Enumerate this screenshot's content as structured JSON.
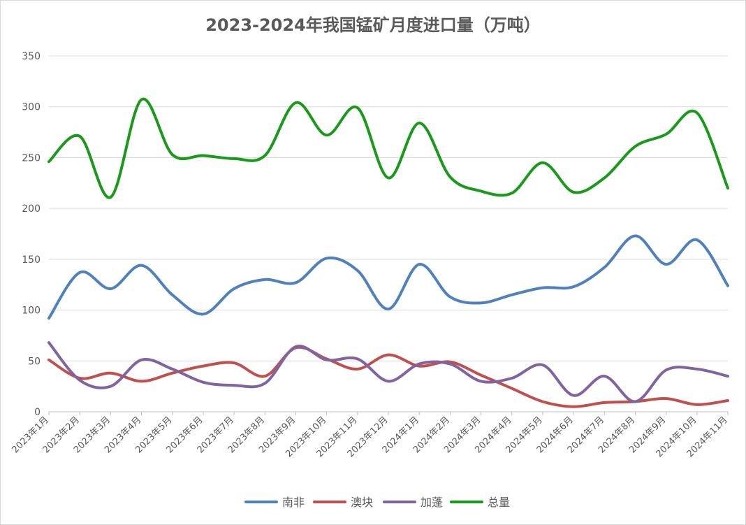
{
  "chart_data": {
    "type": "line",
    "title": "2023-2024年我国锰矿月度进口量（万吨）",
    "xlabel": "",
    "ylabel": "",
    "ylim": [
      0,
      350
    ],
    "yticks": [
      0,
      50,
      100,
      150,
      200,
      250,
      300,
      350
    ],
    "grid": true,
    "legend_position": "bottom",
    "categories": [
      "2023年1月",
      "2023年2月",
      "2023年3月",
      "2023年4月",
      "2023年5月",
      "2023年6月",
      "2023年7月",
      "2023年8月",
      "2023年9月",
      "2023年10月",
      "2023年11月",
      "2023年12月",
      "2024年1月",
      "2024年2月",
      "2024年3月",
      "2024年4月",
      "2024年5月",
      "2024年6月",
      "2024年7月",
      "2024年8月",
      "2024年9月",
      "2024年10月",
      "2024年11月"
    ],
    "series": [
      {
        "name": "南非",
        "color": "#4f81bd",
        "values": [
          92,
          137,
          121,
          144,
          115,
          96,
          121,
          130,
          127,
          151,
          139,
          101,
          145,
          113,
          107,
          115,
          122,
          123,
          142,
          173,
          145,
          169,
          124
        ]
      },
      {
        "name": "澳块",
        "color": "#c0504d",
        "values": [
          51,
          33,
          38,
          30,
          38,
          45,
          48,
          35,
          63,
          52,
          42,
          56,
          45,
          49,
          36,
          23,
          10,
          5,
          9,
          10,
          13,
          7,
          11
        ]
      },
      {
        "name": "加蓬",
        "color": "#8064a2",
        "values": [
          68,
          31,
          25,
          51,
          42,
          29,
          26,
          28,
          64,
          51,
          52,
          30,
          47,
          47,
          30,
          33,
          46,
          16,
          35,
          10,
          41,
          42,
          35
        ]
      },
      {
        "name": "总量",
        "color": "#1a9a1a",
        "values": [
          246,
          271,
          211,
          307,
          253,
          252,
          249,
          252,
          304,
          272,
          299,
          230,
          284,
          231,
          217,
          215,
          245,
          216,
          230,
          261,
          273,
          294,
          220
        ]
      }
    ]
  }
}
